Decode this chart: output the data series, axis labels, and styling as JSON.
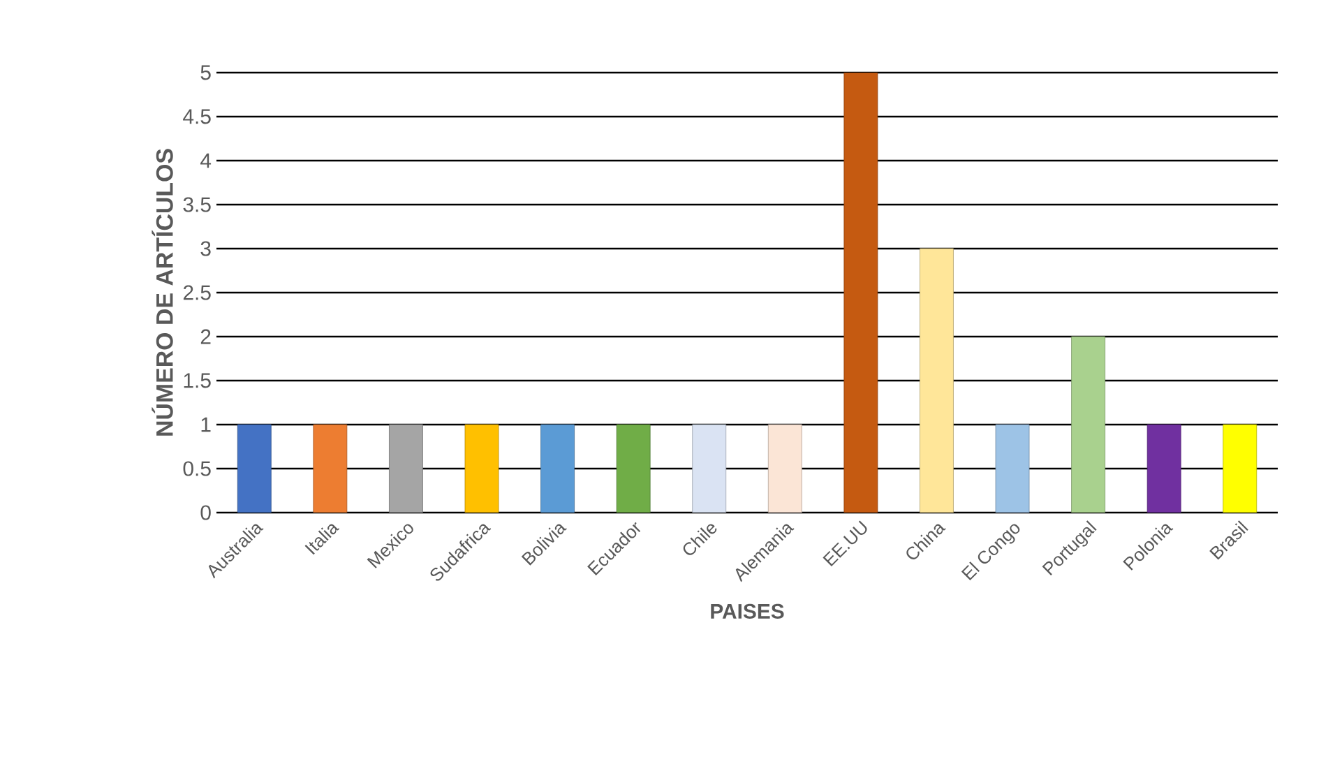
{
  "chart_data": {
    "type": "bar",
    "xlabel": "PAISES",
    "ylabel": "NÚMERO DE ARTÍCULOS",
    "categories": [
      "Australia",
      "Italia",
      "Mexico",
      "Sudafrica",
      "Bolivia",
      "Ecuador",
      "Chile",
      "Alemania",
      "EE.UU",
      "China",
      "El Congo",
      "Portugal",
      "Polonia",
      "Brasil"
    ],
    "values": [
      1,
      1,
      1,
      1,
      1,
      1,
      1,
      1,
      5,
      3,
      1,
      2,
      1,
      1
    ],
    "colors": [
      "#4472c4",
      "#ed7d31",
      "#a5a5a5",
      "#ffc000",
      "#5b9bd5",
      "#70ad47",
      "#dae3f3",
      "#fbe5d6",
      "#c55a11",
      "#ffe699",
      "#9dc3e6",
      "#a9d18e",
      "#7030a0",
      "#ffff00"
    ],
    "ylim": [
      0,
      5
    ],
    "yticks": [
      0,
      0.5,
      1,
      1.5,
      2,
      2.5,
      3,
      3.5,
      4,
      4.5,
      5
    ],
    "grid": "y"
  }
}
